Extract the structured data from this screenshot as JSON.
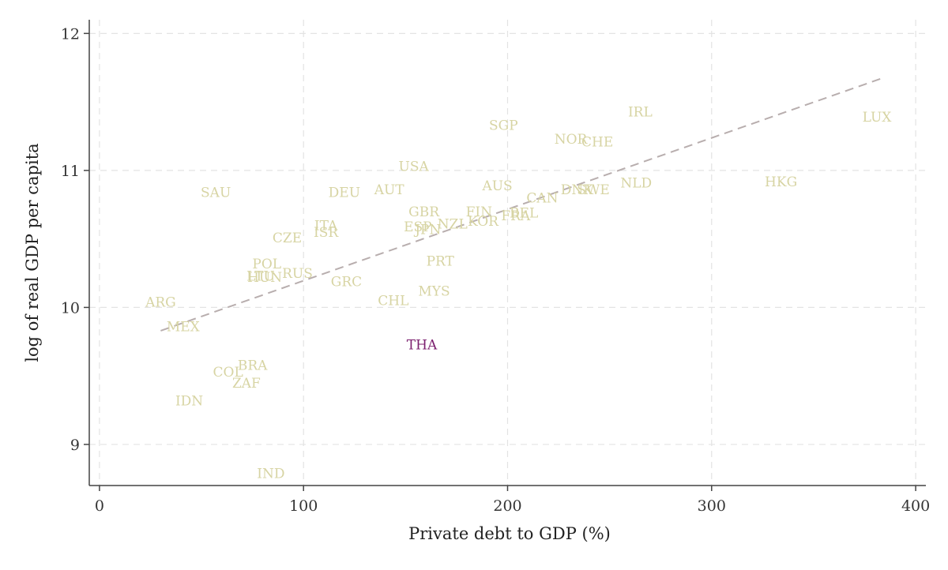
{
  "chart_data": {
    "type": "scatter",
    "title": "",
    "xlabel": "Private debt to GDP (%)",
    "ylabel": "log of real GDP per capita",
    "xlim": [
      -5,
      405
    ],
    "ylim": [
      8.7,
      12.1
    ],
    "xticks": [
      0,
      100,
      200,
      300,
      400
    ],
    "yticks": [
      9,
      10,
      11,
      12
    ],
    "grid": true,
    "legend": "none",
    "colors": {
      "default_label": "#d7d4a3",
      "highlight_label": "#7b1f6e",
      "fit_line": "#b8aeae",
      "grid": "#e3e3e3",
      "axis": "#444444"
    },
    "points": [
      {
        "label": "LUX",
        "x": 381,
        "y": 11.39
      },
      {
        "label": "IRL",
        "x": 265,
        "y": 11.43
      },
      {
        "label": "HKG",
        "x": 334,
        "y": 10.92
      },
      {
        "label": "NLD",
        "x": 263,
        "y": 10.91
      },
      {
        "label": "SGP",
        "x": 198,
        "y": 11.33
      },
      {
        "label": "NOR",
        "x": 231,
        "y": 11.23
      },
      {
        "label": "CHE",
        "x": 244,
        "y": 11.21
      },
      {
        "label": "USA",
        "x": 154,
        "y": 11.03
      },
      {
        "label": "AUS",
        "x": 195,
        "y": 10.89
      },
      {
        "label": "SWE",
        "x": 242,
        "y": 10.86
      },
      {
        "label": "DNK",
        "x": 234,
        "y": 10.86
      },
      {
        "label": "CAN",
        "x": 217,
        "y": 10.8
      },
      {
        "label": "AUT",
        "x": 142,
        "y": 10.86
      },
      {
        "label": "DEU",
        "x": 120,
        "y": 10.84
      },
      {
        "label": "SAU",
        "x": 57,
        "y": 10.84
      },
      {
        "label": "GBR",
        "x": 159,
        "y": 10.7
      },
      {
        "label": "FIN",
        "x": 186,
        "y": 10.7
      },
      {
        "label": "BEL",
        "x": 208,
        "y": 10.69
      },
      {
        "label": "FRA",
        "x": 204,
        "y": 10.67
      },
      {
        "label": "KOR",
        "x": 188,
        "y": 10.63
      },
      {
        "label": "NZL",
        "x": 173,
        "y": 10.61
      },
      {
        "label": "ESP",
        "x": 156,
        "y": 10.59
      },
      {
        "label": "JPN",
        "x": 161,
        "y": 10.57
      },
      {
        "label": "ITA",
        "x": 111,
        "y": 10.6
      },
      {
        "label": "ISR",
        "x": 111,
        "y": 10.55
      },
      {
        "label": "CZE",
        "x": 92,
        "y": 10.51
      },
      {
        "label": "PRT",
        "x": 167,
        "y": 10.34
      },
      {
        "label": "POL",
        "x": 82,
        "y": 10.32
      },
      {
        "label": "RUS",
        "x": 97,
        "y": 10.25
      },
      {
        "label": "HUN",
        "x": 81,
        "y": 10.22
      },
      {
        "label": "LTU",
        "x": 79,
        "y": 10.23
      },
      {
        "label": "GRC",
        "x": 121,
        "y": 10.19
      },
      {
        "label": "MYS",
        "x": 164,
        "y": 10.12
      },
      {
        "label": "CHL",
        "x": 144,
        "y": 10.05
      },
      {
        "label": "ARG",
        "x": 30,
        "y": 10.04
      },
      {
        "label": "MEX",
        "x": 41,
        "y": 9.86
      },
      {
        "label": "THA",
        "x": 158,
        "y": 9.73,
        "highlight": true
      },
      {
        "label": "BRA",
        "x": 75,
        "y": 9.58
      },
      {
        "label": "COL",
        "x": 63,
        "y": 9.53
      },
      {
        "label": "ZAF",
        "x": 72,
        "y": 9.45
      },
      {
        "label": "IDN",
        "x": 44,
        "y": 9.32
      },
      {
        "label": "IND",
        "x": 84,
        "y": 8.79
      }
    ],
    "fit_line": {
      "x1": 30,
      "y1": 9.83,
      "x2": 383,
      "y2": 11.67
    }
  }
}
